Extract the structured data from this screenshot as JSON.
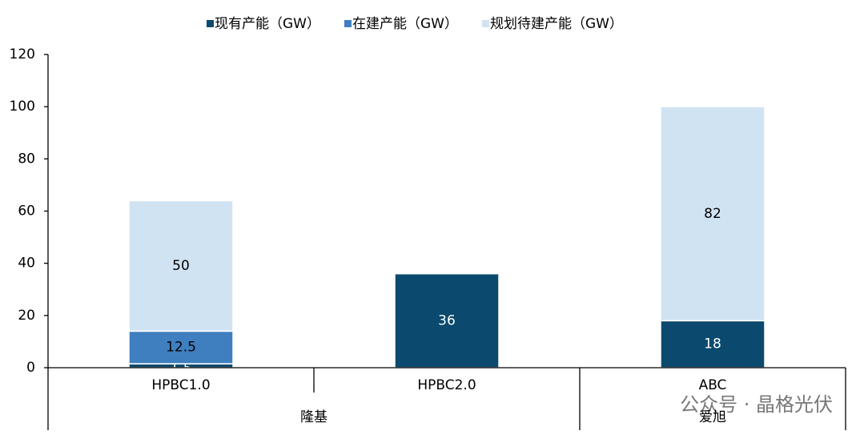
{
  "chart_data": {
    "type": "stacked_bar",
    "categories": [
      "HPBC1.0",
      "HPBC2.0",
      "ABC"
    ],
    "groups": [
      {
        "label": "隆基",
        "count": 2
      },
      {
        "label": "爱旭",
        "count": 1
      }
    ],
    "series": [
      {
        "name": "现有产能（GW）",
        "color": "#0b4a6e",
        "label_color": "#ffffff",
        "values": [
          1.5,
          36,
          18
        ]
      },
      {
        "name": "在建产能（GW）",
        "color": "#3f7fbf",
        "label_color": "#000000",
        "values": [
          12.5,
          null,
          null
        ]
      },
      {
        "name": "规划待建产能（GW）",
        "color": "#d0e3f3",
        "label_color": "#000000",
        "values": [
          50,
          null,
          82
        ]
      }
    ],
    "ylim": [
      0,
      120
    ],
    "yticks": [
      0,
      20,
      40,
      60,
      80,
      100,
      120
    ],
    "grid": false,
    "legend": "top"
  },
  "watermark": "公众号 · 晶格光伏"
}
